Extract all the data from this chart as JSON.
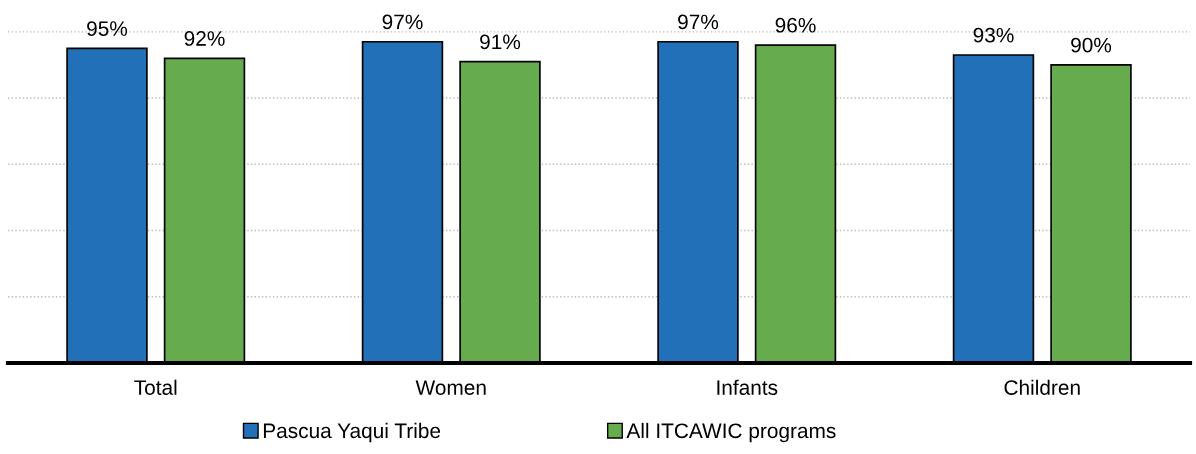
{
  "chart_data": {
    "type": "bar",
    "categories": [
      "Total",
      "Women",
      "Infants",
      "Children"
    ],
    "series": [
      {
        "name": "Pascua Yaqui Tribe",
        "color": "#2270b8",
        "values": [
          95,
          97,
          97,
          93
        ],
        "value_labels": [
          "95%",
          "97%",
          "97%",
          "93%"
        ]
      },
      {
        "name": "All ITCAWIC programs",
        "color": "#67ab4f",
        "values": [
          92,
          91,
          96,
          90
        ],
        "value_labels": [
          "92%",
          "91%",
          "96%",
          "90%"
        ]
      }
    ],
    "tick_labels": "x",
    "grid": "y",
    "legend": "bottom"
  }
}
